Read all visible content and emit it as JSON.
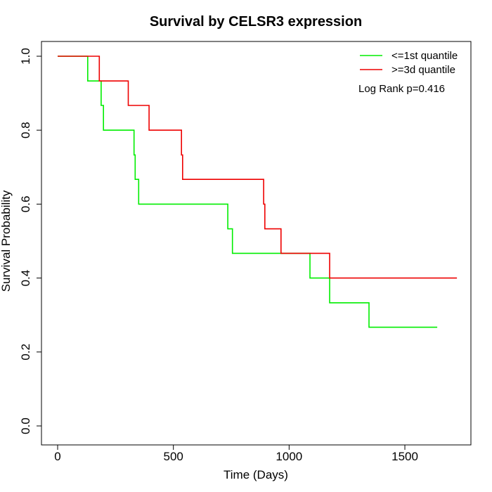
{
  "chart_data": {
    "type": "line",
    "title": "Survival by CELSR3 expression",
    "xlabel": "Time (Days)",
    "ylabel": "Survival Probability",
    "xlim": [
      0,
      1700
    ],
    "ylim": [
      0.0,
      1.0
    ],
    "x_ticks": [
      "0",
      "500",
      "1000",
      "1500"
    ],
    "y_ticks": [
      "0.0",
      "0.2",
      "0.4",
      "0.6",
      "0.8",
      "1.0"
    ],
    "x_tick_values": [
      0,
      500,
      1000,
      1500
    ],
    "y_tick_values": [
      0.0,
      0.2,
      0.4,
      0.6,
      0.8,
      1.0
    ],
    "legend_position": "top-right",
    "annotation": "Log Rank p=0.416",
    "series": [
      {
        "name": "<=1st quantile",
        "color": "#00ee00",
        "x": [
          0,
          130,
          130,
          188,
          188,
          198,
          198,
          330,
          330,
          335,
          335,
          350,
          350,
          735,
          735,
          755,
          755,
          1090,
          1090,
          1175,
          1175,
          1345,
          1345,
          1640
        ],
        "y": [
          1.0,
          1.0,
          0.933,
          0.933,
          0.867,
          0.867,
          0.8,
          0.8,
          0.733,
          0.733,
          0.667,
          0.667,
          0.6,
          0.6,
          0.533,
          0.533,
          0.467,
          0.467,
          0.4,
          0.4,
          0.333,
          0.333,
          0.267,
          0.267
        ]
      },
      {
        "name": ">=3d quantile",
        "color": "#ee0000",
        "x": [
          0,
          180,
          180,
          305,
          305,
          395,
          395,
          535,
          535,
          540,
          540,
          890,
          890,
          895,
          895,
          965,
          965,
          1175,
          1175,
          1725
        ],
        "y": [
          1.0,
          1.0,
          0.933,
          0.933,
          0.867,
          0.867,
          0.8,
          0.8,
          0.733,
          0.733,
          0.667,
          0.667,
          0.6,
          0.6,
          0.533,
          0.533,
          0.467,
          0.467,
          0.4,
          0.4
        ]
      }
    ]
  }
}
